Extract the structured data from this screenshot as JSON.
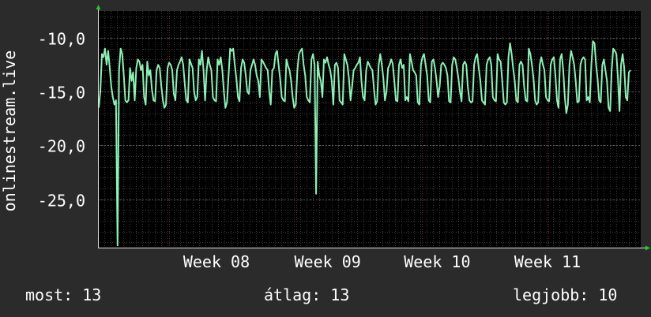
{
  "chart_data": {
    "type": "line",
    "ylabel": "onlinestream.live",
    "ylim": [
      -29.5,
      -7.5
    ],
    "y_ticks": [
      -25.0,
      -20.0,
      -15.0,
      -10.0
    ],
    "y_tick_labels": [
      "-25,0",
      "-20,0",
      "-15,0",
      "-10,0"
    ],
    "x_ticks": [
      "Week 08",
      "Week 09",
      "Week 10",
      "Week 11"
    ],
    "x_tick_positions": [
      0.25,
      0.4844,
      0.7156,
      0.9484
    ],
    "grid": true,
    "series": [
      {
        "color": "#8ff0b8",
        "values": [
          -16.5,
          -15.0,
          -11.5,
          -11.8,
          -11.0,
          -12.5,
          -11.2,
          -12.8,
          -14.5,
          -15.5,
          -16.2,
          -15.8,
          -29.3,
          -13.0,
          -11.0,
          -11.5,
          -13.5,
          -15.8,
          -16.0,
          -15.8,
          -12.8,
          -14.0,
          -13.2,
          -15.8,
          -12.8,
          -12.0,
          -12.2,
          -13.0,
          -12.5,
          -15.5,
          -16.2,
          -12.2,
          -13.5,
          -13.0,
          -14.8,
          -15.8,
          -15.9,
          -13.0,
          -12.5,
          -12.8,
          -14.5,
          -15.8,
          -16.5,
          -16.2,
          -12.8,
          -12.3,
          -12.5,
          -13.0,
          -15.2,
          -15.8,
          -13.0,
          -12.5,
          -12.2,
          -11.8,
          -12.5,
          -14.3,
          -15.8,
          -16.0,
          -12.0,
          -12.4,
          -12.8,
          -15.0,
          -15.8,
          -15.5,
          -12.0,
          -12.5,
          -11.2,
          -13.0,
          -15.8,
          -13.0,
          -11.8,
          -12.5,
          -13.0,
          -15.5,
          -15.8,
          -15.9,
          -12.0,
          -12.5,
          -11.8,
          -13.0,
          -15.0,
          -16.5,
          -16.0,
          -13.5,
          -11.0,
          -11.2,
          -11.0,
          -12.5,
          -13.8,
          -15.5,
          -15.9,
          -12.8,
          -12.0,
          -12.3,
          -13.5,
          -15.0,
          -15.2,
          -13.0,
          -12.5,
          -12.0,
          -12.5,
          -13.5,
          -14.0,
          -15.5,
          -12.0,
          -12.2,
          -12.5,
          -12.8,
          -13.0,
          -15.0,
          -16.2,
          -13.0,
          -12.8,
          -11.5,
          -11.2,
          -12.5,
          -13.8,
          -15.5,
          -15.8,
          -15.9,
          -12.0,
          -12.6,
          -13.0,
          -14.0,
          -15.5,
          -16.5,
          -16.2,
          -13.0,
          -11.5,
          -11.2,
          -11.0,
          -12.5,
          -13.5,
          -15.5,
          -15.8,
          -16.0,
          -12.0,
          -11.5,
          -12.5,
          -24.5,
          -12.2,
          -13.5,
          -14.0,
          -15.5,
          -12.0,
          -12.3,
          -11.8,
          -12.5,
          -13.0,
          -14.0,
          -16.2,
          -12.5,
          -12.3,
          -12.8,
          -15.8,
          -16.0,
          -16.2,
          -11.5,
          -12.0,
          -12.5,
          -13.8,
          -15.8,
          -14.5,
          -13.0,
          -12.8,
          -12.5,
          -12.3,
          -11.8,
          -14.0,
          -15.5,
          -15.8,
          -13.0,
          -12.2,
          -12.5,
          -12.8,
          -13.0,
          -14.8,
          -16.2,
          -15.9,
          -12.5,
          -11.5,
          -12.5,
          -13.8,
          -15.8,
          -15.0,
          -12.8,
          -12.5,
          -12.0,
          -12.4,
          -14.0,
          -15.8,
          -15.9,
          -12.5,
          -12.0,
          -12.8,
          -12.5,
          -15.8,
          -15.5,
          -15.9,
          -11.5,
          -12.2,
          -13.0,
          -13.2,
          -13.5,
          -16.0,
          -16.2,
          -12.5,
          -11.8,
          -11.5,
          -12.5,
          -13.5,
          -15.8,
          -16.0,
          -12.2,
          -12.0,
          -12.8,
          -14.0,
          -15.5,
          -14.5,
          -12.5,
          -12.3,
          -12.5,
          -12.8,
          -13.5,
          -15.9,
          -16.0,
          -12.5,
          -11.8,
          -12.0,
          -12.8,
          -13.8,
          -15.0,
          -15.9,
          -12.5,
          -12.2,
          -12.5,
          -14.5,
          -15.8,
          -16.0,
          -15.9,
          -12.5,
          -11.8,
          -11.5,
          -12.8,
          -14.0,
          -15.8,
          -16.0,
          -16.2,
          -12.5,
          -12.0,
          -11.8,
          -12.5,
          -15.5,
          -15.8,
          -15.9,
          -11.5,
          -12.0,
          -12.2,
          -14.0,
          -16.0,
          -16.2,
          -16.0,
          -11.8,
          -10.5,
          -11.5,
          -12.8,
          -14.0,
          -15.8,
          -16.0,
          -12.5,
          -12.2,
          -12.5,
          -14.5,
          -15.8,
          -15.9,
          -11.0,
          -11.5,
          -12.5,
          -13.8,
          -15.8,
          -16.2,
          -16.0,
          -12.5,
          -11.8,
          -12.5,
          -13.0,
          -15.5,
          -15.8,
          -15.9,
          -12.5,
          -12.0,
          -11.8,
          -13.5,
          -15.8,
          -16.5,
          -12.0,
          -11.5,
          -13.0,
          -15.5,
          -17.0,
          -16.2,
          -12.5,
          -11.2,
          -11.8,
          -12.5,
          -14.0,
          -16.0,
          -15.9,
          -12.5,
          -12.0,
          -11.8,
          -12.0,
          -15.8,
          -15.5,
          -16.0,
          -12.5,
          -10.3,
          -10.5,
          -12.5,
          -13.8,
          -15.8,
          -16.0,
          -12.5,
          -12.0,
          -13.0,
          -14.0,
          -16.5,
          -16.8,
          -13.0,
          -11.0,
          -11.2,
          -11.5,
          -13.8,
          -16.8,
          -12.5,
          -11.5,
          -12.8,
          -15.5,
          -15.8,
          -13.2,
          -13.0
        ]
      }
    ]
  },
  "stats": {
    "current": "most: 13",
    "average": "átlag: 13",
    "best": "legjobb: 10"
  }
}
